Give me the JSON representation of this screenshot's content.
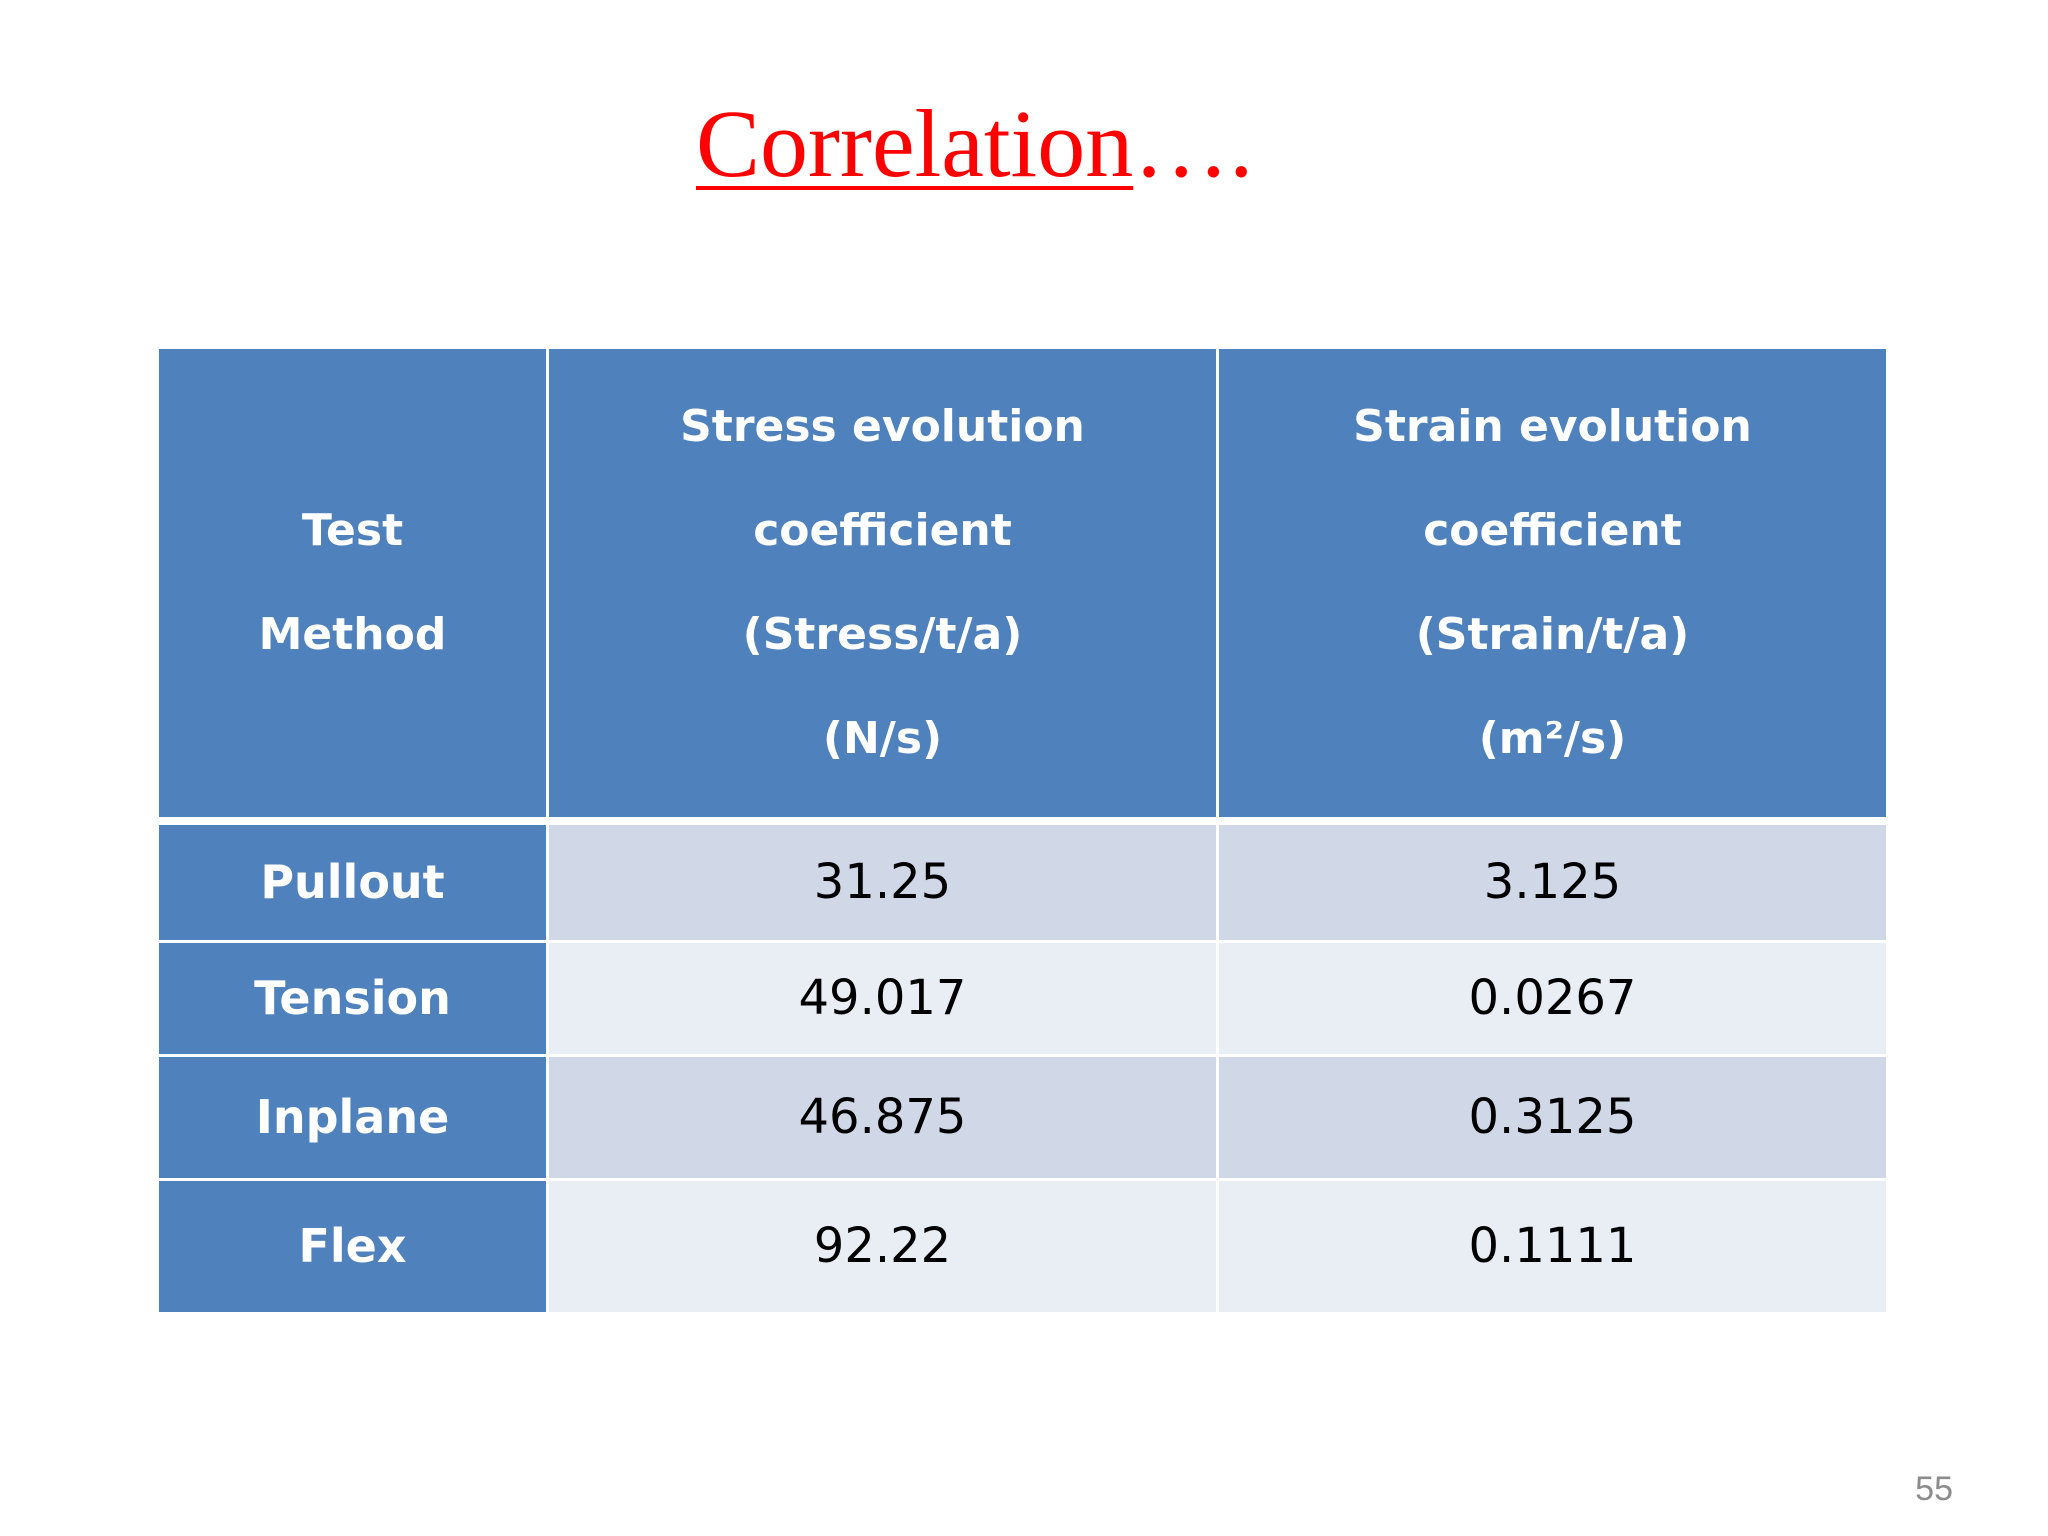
{
  "slide": {
    "title_main": "Correlation",
    "title_suffix": "….",
    "page_number": "55"
  },
  "table": {
    "headers": [
      {
        "lines": [
          "Test",
          "Method"
        ]
      },
      {
        "lines": [
          "Stress evolution",
          "coefficient",
          "(Stress/t/a)",
          "(N/s)"
        ]
      },
      {
        "lines": [
          "Strain evolution",
          "coefficient",
          "(Strain/t/a)",
          "(m²/s)"
        ]
      }
    ],
    "rows": [
      {
        "method": "Pullout",
        "stress": "31.25",
        "strain": "3.125"
      },
      {
        "method": "Tension",
        "stress": "49.017",
        "strain": "0.0267"
      },
      {
        "method": "Inplane",
        "stress": "46.875",
        "strain": "0.3125"
      },
      {
        "method": "Flex",
        "stress": "92.22",
        "strain": "0.1111"
      }
    ]
  },
  "colors": {
    "title": "#ff0000",
    "header_fill": "#4f81bd",
    "row_fill_odd": "#d0d8e8",
    "row_fill_even": "#e9edf4",
    "page_number": "#8c8c8c"
  }
}
